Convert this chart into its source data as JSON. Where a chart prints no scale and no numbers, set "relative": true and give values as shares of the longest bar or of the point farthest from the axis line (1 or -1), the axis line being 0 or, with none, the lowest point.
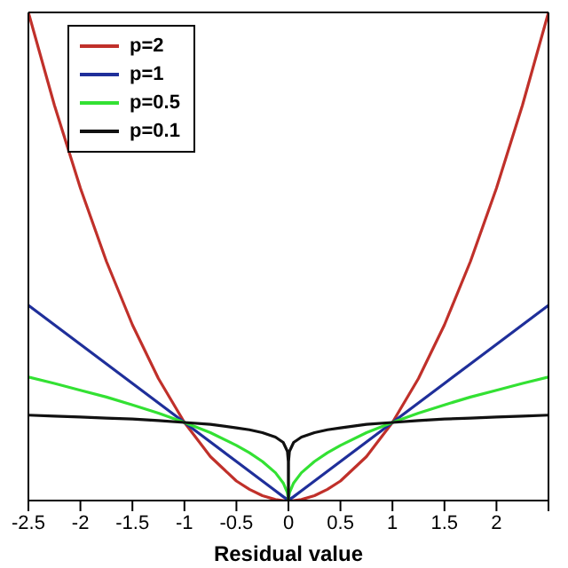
{
  "chart_data": {
    "type": "line",
    "xlabel": "Residual value",
    "relative": true,
    "x": [
      -2.5,
      -2.25,
      -2,
      -1.75,
      -1.5,
      -1.25,
      -1,
      -0.75,
      -0.5,
      -0.375,
      -0.25,
      -0.125,
      -0.05,
      -0.01,
      -0.001,
      0,
      0.001,
      0.01,
      0.05,
      0.125,
      0.25,
      0.375,
      0.5,
      0.75,
      1,
      1.25,
      1.5,
      1.75,
      2,
      2.25,
      2.5
    ],
    "series": [
      {
        "name": "p=2",
        "color": "#c0302a",
        "values": [
          1,
          0.81,
          0.64,
          0.49,
          0.36,
          0.25,
          0.16,
          0.09,
          0.04,
          0.023,
          0.01,
          0.002,
          0,
          0,
          0,
          0,
          0,
          0,
          0,
          0.002,
          0.01,
          0.023,
          0.04,
          0.09,
          0.16,
          0.25,
          0.36,
          0.49,
          0.64,
          0.81,
          1
        ]
      },
      {
        "name": "p=1",
        "color": "#1f2f9a",
        "values": [
          0.4,
          0.36,
          0.32,
          0.28,
          0.24,
          0.2,
          0.16,
          0.12,
          0.08,
          0.06,
          0.04,
          0.02,
          0.008,
          0.002,
          0,
          0,
          0,
          0.002,
          0.008,
          0.02,
          0.04,
          0.06,
          0.08,
          0.12,
          0.16,
          0.2,
          0.24,
          0.28,
          0.32,
          0.36,
          0.4
        ]
      },
      {
        "name": "p=0.5",
        "color": "#33e133",
        "values": [
          0.253,
          0.24,
          0.226,
          0.212,
          0.196,
          0.179,
          0.16,
          0.139,
          0.113,
          0.098,
          0.08,
          0.057,
          0.036,
          0.016,
          0.005,
          0,
          0.005,
          0.016,
          0.036,
          0.057,
          0.08,
          0.098,
          0.113,
          0.139,
          0.16,
          0.179,
          0.196,
          0.212,
          0.226,
          0.24,
          0.253
        ]
      },
      {
        "name": "p=0.1",
        "color": "#111111",
        "values": [
          0.175,
          0.173,
          0.171,
          0.169,
          0.167,
          0.164,
          0.16,
          0.156,
          0.149,
          0.145,
          0.139,
          0.13,
          0.119,
          0.101,
          0.08,
          0,
          0.08,
          0.101,
          0.119,
          0.13,
          0.139,
          0.145,
          0.149,
          0.156,
          0.16,
          0.164,
          0.167,
          0.169,
          0.171,
          0.173,
          0.175
        ]
      }
    ],
    "xlim": [
      -2.5,
      2.5
    ],
    "xticks": [
      -2.5,
      -2,
      -1.5,
      -1,
      -0.5,
      0,
      0.5,
      1,
      1.5,
      2,
      {
        "value": 2.5,
        "label": null
      }
    ],
    "legend": "top left",
    "grid": false,
    "marker": "none",
    "line_style": "solid"
  }
}
